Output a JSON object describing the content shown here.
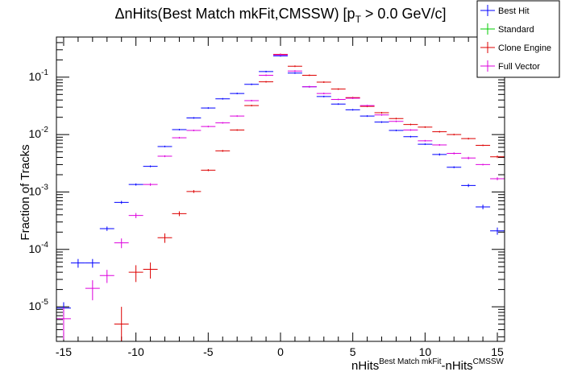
{
  "chart_data": {
    "type": "scatter",
    "title": {
      "prefix": "ΔnHits(Best Match mkFit,CMSSW) [p",
      "sub": "T",
      "suffix": " > 0.0 GeV/c]"
    },
    "xlabel": {
      "a": "nHits",
      "a_sup": "Best Match mkFit",
      "b": "-nHits",
      "b_sup": "CMSSW"
    },
    "ylabel": "Fraction of Tracks",
    "xlim": [
      -15.5,
      15.5
    ],
    "ylim": [
      2.5e-06,
      0.5
    ],
    "yscale": "log",
    "xticks": [
      -15,
      -10,
      -5,
      0,
      5,
      10,
      15
    ],
    "yticks": [
      {
        "value": 0.1,
        "base": "10",
        "exp": "-1"
      },
      {
        "value": 0.01,
        "base": "10",
        "exp": "-2"
      },
      {
        "value": 0.001,
        "base": "10",
        "exp": "-3"
      },
      {
        "value": 0.0001,
        "base": "10",
        "exp": "-4"
      },
      {
        "value": 1e-05,
        "base": "10",
        "exp": "-5"
      }
    ],
    "grid": false,
    "legend_position": "top-right",
    "series": [
      {
        "name": "Best Hit",
        "color": "#0000ff",
        "points": [
          {
            "x": -15,
            "y": 9.5e-06,
            "err": 2.5e-06
          },
          {
            "x": -14,
            "y": 5.8e-05,
            "err": 1e-05
          },
          {
            "x": -13,
            "y": 5.8e-05,
            "err": 1e-05
          },
          {
            "x": -12,
            "y": 0.00023,
            "err": 2e-05
          },
          {
            "x": -11,
            "y": 0.00066,
            "err": 4e-05
          },
          {
            "x": -10,
            "y": 0.00135,
            "err": 6e-05
          },
          {
            "x": -9,
            "y": 0.0028,
            "err": 0.0001
          },
          {
            "x": -8,
            "y": 0.0062,
            "err": 0.0002
          },
          {
            "x": -7,
            "y": 0.0122,
            "err": 0.0003
          },
          {
            "x": -6,
            "y": 0.0195,
            "err": 0.0004
          },
          {
            "x": -5,
            "y": 0.029,
            "err": 0.0005
          },
          {
            "x": -4,
            "y": 0.042,
            "err": 0.0006
          },
          {
            "x": -3,
            "y": 0.052,
            "err": 0.0007
          },
          {
            "x": -2,
            "y": 0.075,
            "err": 0.0008
          },
          {
            "x": -1,
            "y": 0.125,
            "err": 0.001
          },
          {
            "x": 0,
            "y": 0.235,
            "err": 0.0015
          },
          {
            "x": 1,
            "y": 0.118,
            "err": 0.001
          },
          {
            "x": 2,
            "y": 0.068,
            "err": 0.0008
          },
          {
            "x": 3,
            "y": 0.046,
            "err": 0.0006
          },
          {
            "x": 4,
            "y": 0.034,
            "err": 0.0005
          },
          {
            "x": 5,
            "y": 0.027,
            "err": 0.0005
          },
          {
            "x": 6,
            "y": 0.021,
            "err": 0.0004
          },
          {
            "x": 7,
            "y": 0.0165,
            "err": 0.0004
          },
          {
            "x": 8,
            "y": 0.0118,
            "err": 0.0003
          },
          {
            "x": 9,
            "y": 0.0092,
            "err": 0.0003
          },
          {
            "x": 10,
            "y": 0.0068,
            "err": 0.0002
          },
          {
            "x": 11,
            "y": 0.0045,
            "err": 0.0002
          },
          {
            "x": 12,
            "y": 0.0027,
            "err": 0.0001
          },
          {
            "x": 13,
            "y": 0.0013,
            "err": 8e-05
          },
          {
            "x": 14,
            "y": 0.00055,
            "err": 5e-05
          },
          {
            "x": 15,
            "y": 0.00021,
            "err": 3e-05
          }
        ]
      },
      {
        "name": "Standard",
        "color": "#00cc00",
        "points": []
      },
      {
        "name": "Clone Engine",
        "color": "#dd0000",
        "points": [
          {
            "x": -11,
            "y": 5e-06,
            "err": 5e-06
          },
          {
            "x": -10,
            "y": 4e-05,
            "err": 1.3e-05
          },
          {
            "x": -9,
            "y": 4.5e-05,
            "err": 1.4e-05
          },
          {
            "x": -8,
            "y": 0.00016,
            "err": 3e-05
          },
          {
            "x": -7,
            "y": 0.00042,
            "err": 4e-05
          },
          {
            "x": -6,
            "y": 0.00102,
            "err": 6e-05
          },
          {
            "x": -5,
            "y": 0.0024,
            "err": 0.0001
          },
          {
            "x": -4,
            "y": 0.0052,
            "err": 0.0002
          },
          {
            "x": -3,
            "y": 0.012,
            "err": 0.0003
          },
          {
            "x": -2,
            "y": 0.032,
            "err": 0.0005
          },
          {
            "x": -1,
            "y": 0.083,
            "err": 0.0009
          },
          {
            "x": 0,
            "y": 0.25,
            "err": 0.0015
          },
          {
            "x": 1,
            "y": 0.155,
            "err": 0.0012
          },
          {
            "x": 2,
            "y": 0.108,
            "err": 0.001
          },
          {
            "x": 3,
            "y": 0.082,
            "err": 0.0009
          },
          {
            "x": 4,
            "y": 0.062,
            "err": 0.0008
          },
          {
            "x": 5,
            "y": 0.044,
            "err": 0.0006
          },
          {
            "x": 6,
            "y": 0.031,
            "err": 0.0005
          },
          {
            "x": 7,
            "y": 0.024,
            "err": 0.0004
          },
          {
            "x": 8,
            "y": 0.019,
            "err": 0.0004
          },
          {
            "x": 9,
            "y": 0.015,
            "err": 0.0003
          },
          {
            "x": 10,
            "y": 0.0135,
            "err": 0.0003
          },
          {
            "x": 11,
            "y": 0.0112,
            "err": 0.0003
          },
          {
            "x": 12,
            "y": 0.01,
            "err": 0.0003
          },
          {
            "x": 13,
            "y": 0.0085,
            "err": 0.0003
          },
          {
            "x": 14,
            "y": 0.0065,
            "err": 0.0002
          },
          {
            "x": 15,
            "y": 0.0041,
            "err": 0.0002
          }
        ]
      },
      {
        "name": "Full Vector",
        "color": "#dd00dd",
        "points": [
          {
            "x": -15,
            "y": 6.2e-06,
            "err": 3.5e-06
          },
          {
            "x": -13,
            "y": 2.1e-05,
            "err": 8e-06
          },
          {
            "x": -12,
            "y": 3.5e-05,
            "err": 9e-06
          },
          {
            "x": -11,
            "y": 0.00013,
            "err": 2.5e-05
          },
          {
            "x": -10,
            "y": 0.00039,
            "err": 4e-05
          },
          {
            "x": -9,
            "y": 0.00135,
            "err": 7e-05
          },
          {
            "x": -8,
            "y": 0.0042,
            "err": 0.00015
          },
          {
            "x": -7,
            "y": 0.0088,
            "err": 0.0002
          },
          {
            "x": -6,
            "y": 0.0118,
            "err": 0.0003
          },
          {
            "x": -5,
            "y": 0.0138,
            "err": 0.0003
          },
          {
            "x": -4,
            "y": 0.016,
            "err": 0.0004
          },
          {
            "x": -3,
            "y": 0.021,
            "err": 0.0004
          },
          {
            "x": -2,
            "y": 0.039,
            "err": 0.0006
          },
          {
            "x": -1,
            "y": 0.108,
            "err": 0.001
          },
          {
            "x": 0,
            "y": 0.245,
            "err": 0.0015
          },
          {
            "x": 1,
            "y": 0.128,
            "err": 0.0011
          },
          {
            "x": 2,
            "y": 0.068,
            "err": 0.0008
          },
          {
            "x": 3,
            "y": 0.052,
            "err": 0.0007
          },
          {
            "x": 4,
            "y": 0.041,
            "err": 0.0006
          },
          {
            "x": 5,
            "y": 0.043,
            "err": 0.0006
          },
          {
            "x": 6,
            "y": 0.032,
            "err": 0.0005
          },
          {
            "x": 7,
            "y": 0.022,
            "err": 0.0004
          },
          {
            "x": 8,
            "y": 0.017,
            "err": 0.0004
          },
          {
            "x": 9,
            "y": 0.012,
            "err": 0.0003
          },
          {
            "x": 10,
            "y": 0.0078,
            "err": 0.0002
          },
          {
            "x": 11,
            "y": 0.0066,
            "err": 0.0002
          },
          {
            "x": 12,
            "y": 0.0047,
            "err": 0.0002
          },
          {
            "x": 13,
            "y": 0.0039,
            "err": 0.0002
          },
          {
            "x": 14,
            "y": 0.003,
            "err": 0.0001
          },
          {
            "x": 15,
            "y": 0.0017,
            "err": 0.0001
          }
        ]
      }
    ]
  }
}
